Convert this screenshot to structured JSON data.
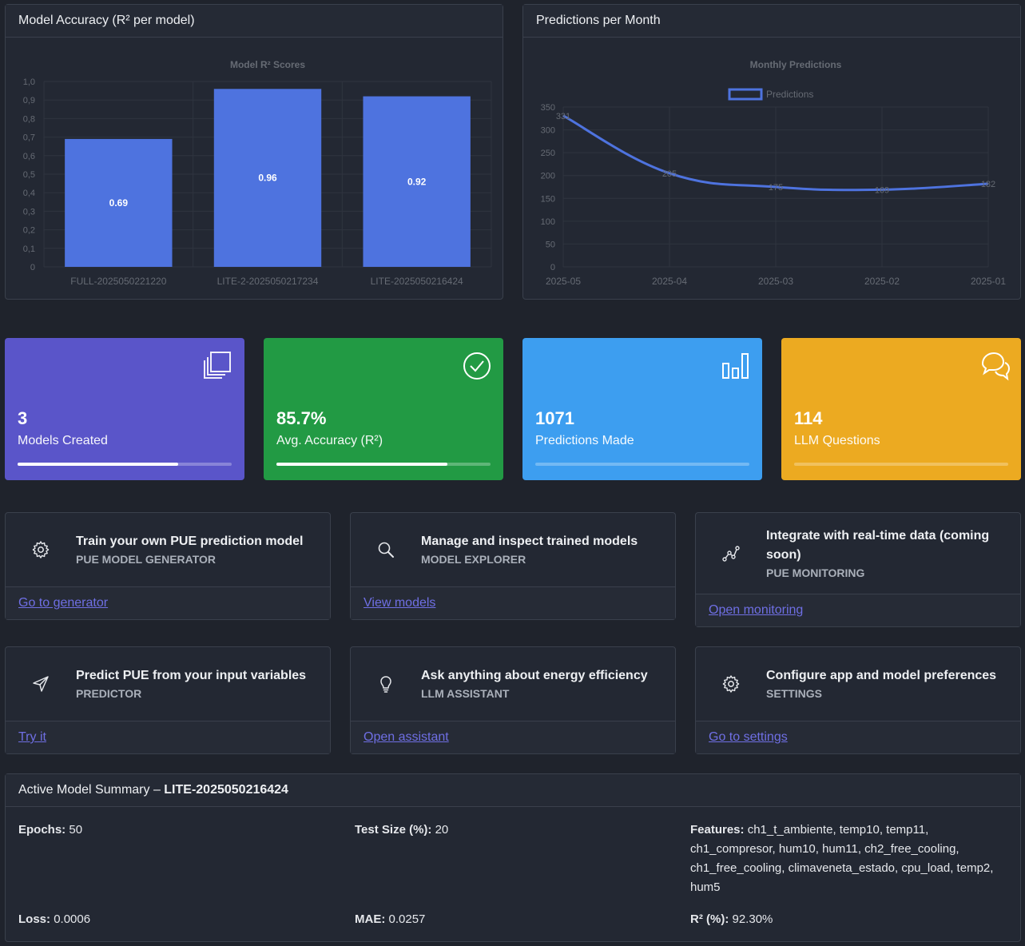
{
  "accuracy_card": {
    "header": "Model Accuracy (R² per model)",
    "chart_data": {
      "type": "bar",
      "title": "Model R² Scores",
      "categories": [
        "FULL-2025050221220",
        "LITE-2-2025050217234",
        "LITE-2025050216424"
      ],
      "values": [
        0.69,
        0.96,
        0.92
      ],
      "data_labels": [
        "0.69",
        "0.96",
        "0.92"
      ],
      "ylim": [
        0,
        1.0
      ],
      "yticks": [
        "0",
        "0,1",
        "0,2",
        "0,3",
        "0,4",
        "0,5",
        "0,6",
        "0,7",
        "0,8",
        "0,9",
        "1,0"
      ],
      "bar_color": "#4e73df",
      "grid": true
    }
  },
  "predictions_card": {
    "header": "Predictions per Month",
    "chart_data": {
      "type": "line",
      "title": "Monthly Predictions",
      "legend": "Predictions",
      "legend_position": "top",
      "x": [
        "2025-05",
        "2025-04",
        "2025-03",
        "2025-02",
        "2025-01"
      ],
      "values": [
        331,
        205,
        175,
        169,
        182
      ],
      "data_labels": [
        "331",
        "205",
        "175",
        "169",
        "182"
      ],
      "ylim": [
        0,
        350
      ],
      "yticks": [
        "0",
        "50",
        "100",
        "150",
        "200",
        "250",
        "300",
        "350"
      ],
      "line_color": "#4e73df",
      "grid": true
    }
  },
  "stats": [
    {
      "value": "3",
      "label": "Models Created",
      "progress": 0.75,
      "color": "#5a55c9",
      "icon": "copy-icon"
    },
    {
      "value": "85.7%",
      "label": "Avg. Accuracy (R²)",
      "progress": 0.8,
      "color": "#229a44",
      "icon": "check-circle-icon"
    },
    {
      "value": "1071",
      "label": "Predictions Made",
      "progress": 0,
      "color": "#3d9ef0",
      "icon": "bar-chart-icon"
    },
    {
      "value": "114",
      "label": "LLM Questions",
      "progress": 0,
      "color": "#ecaa21",
      "icon": "chat-icon"
    }
  ],
  "features": [
    {
      "title": "Train your own PUE prediction model",
      "subtitle": "PUE MODEL GENERATOR",
      "link": "Go to generator",
      "icon": "gear-icon"
    },
    {
      "title": "Manage and inspect trained models",
      "subtitle": "MODEL EXPLORER",
      "link": "View models",
      "icon": "search-icon"
    },
    {
      "title": "Integrate with real-time data (coming soon)",
      "subtitle": "PUE MONITORING",
      "link": "Open monitoring",
      "icon": "graph-nodes-icon"
    },
    {
      "title": "Predict PUE from your input variables",
      "subtitle": "PREDICTOR",
      "link": "Try it",
      "icon": "send-icon"
    },
    {
      "title": "Ask anything about energy efficiency",
      "subtitle": "LLM ASSISTANT",
      "link": "Open assistant",
      "icon": "lightbulb-icon"
    },
    {
      "title": "Configure app and model preferences",
      "subtitle": "SETTINGS",
      "link": "Go to settings",
      "icon": "gear-icon"
    }
  ],
  "summary": {
    "header_prefix": "Active Model Summary – ",
    "model_name": "LITE-2025050216424",
    "epochs_label": "Epochs:",
    "epochs": "50",
    "test_size_label": "Test Size (%):",
    "test_size": "20",
    "features_label": "Features:",
    "features": "ch1_t_ambiente, temp10, temp11, ch1_compresor, hum10, hum11, ch2_free_cooling, ch1_free_cooling, climaveneta_estado, cpu_load, temp2, hum5",
    "loss_label": "Loss:",
    "loss": "0.0006",
    "mae_label": "MAE:",
    "mae": "0.0257",
    "r2_label": "R² (%):",
    "r2": "92.30%"
  }
}
